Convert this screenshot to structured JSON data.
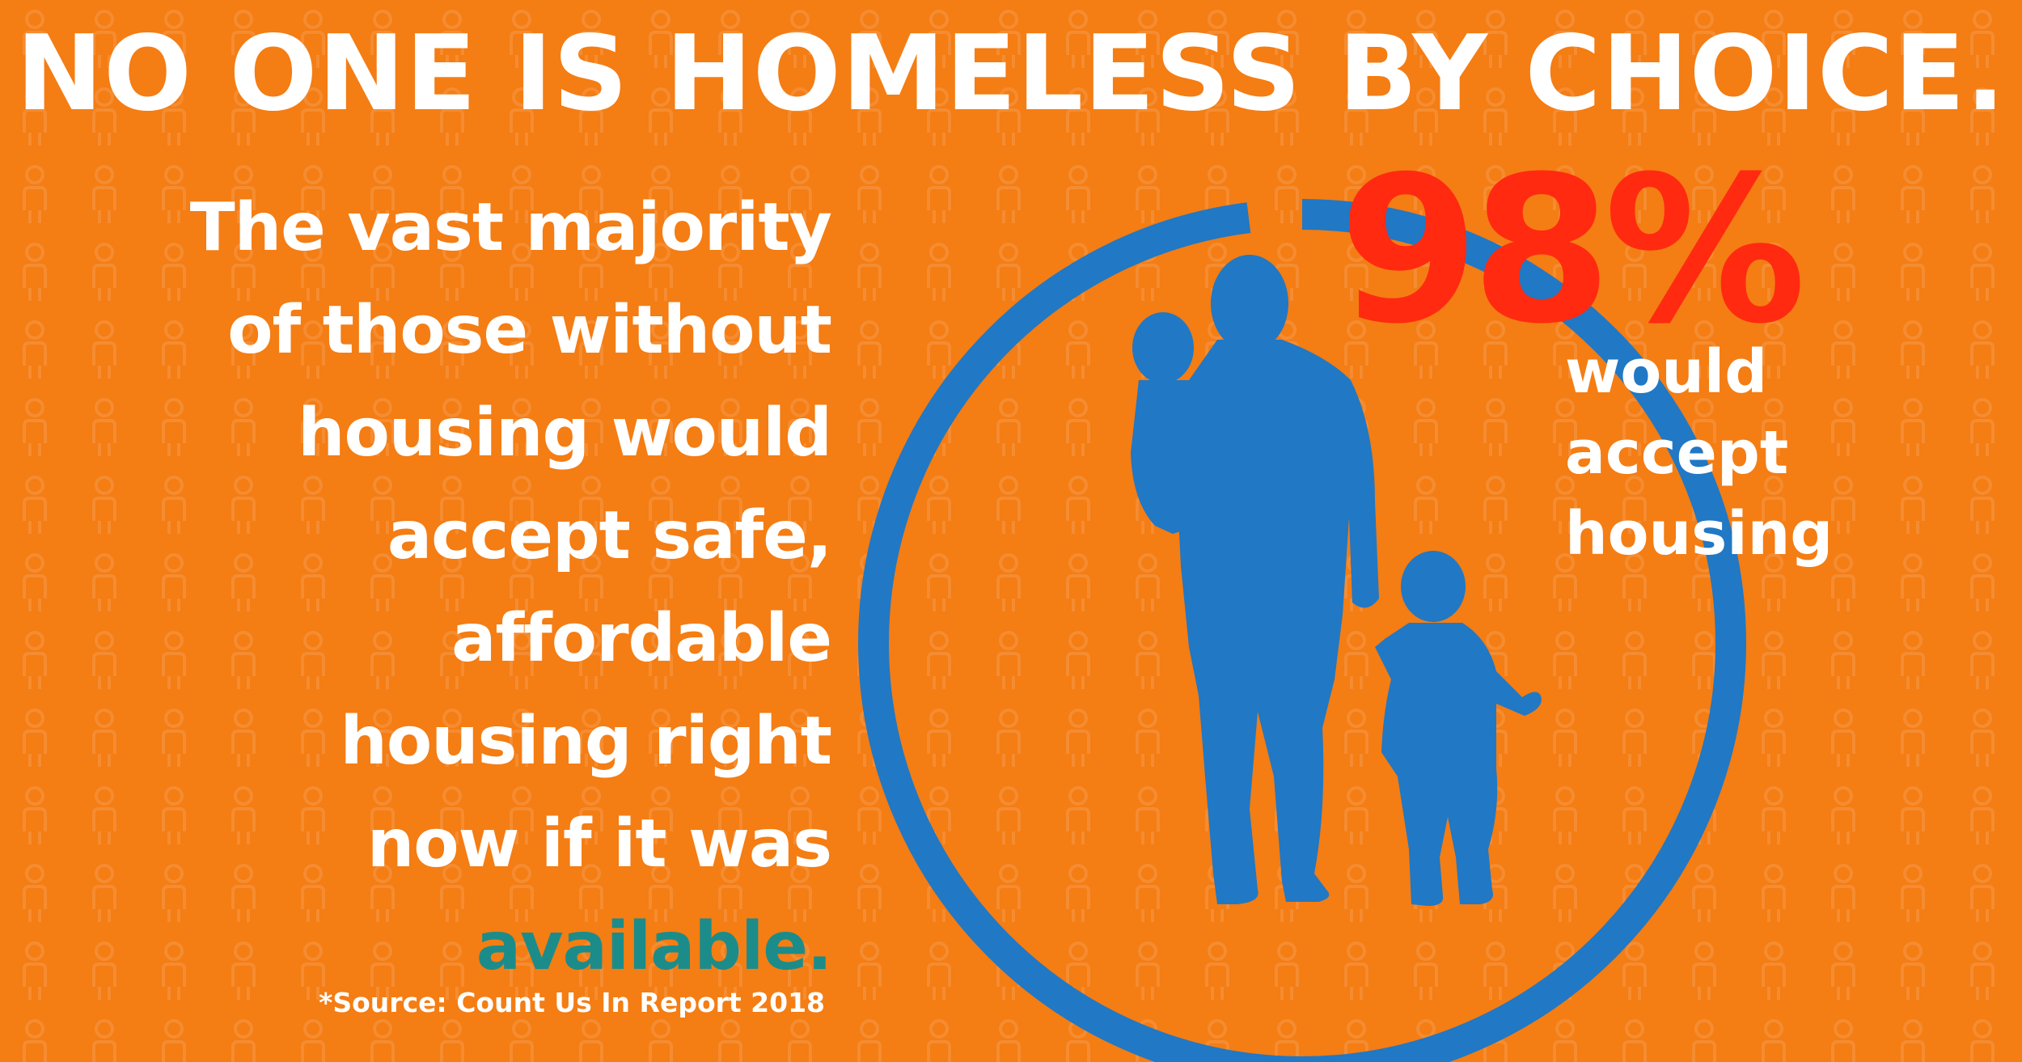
{
  "headline": "NO ONE IS HOMELESS BY CHOICE.",
  "body": {
    "lines": [
      "The vast majority",
      "of those without",
      "housing would",
      "accept safe,",
      "affordable",
      "housing right",
      "now if it was"
    ],
    "emphasis": "available."
  },
  "stat": {
    "value": "98%",
    "caption_lines": [
      "would",
      "accept",
      "housing"
    ],
    "ring_fraction": 0.98
  },
  "source": "*Source: Count Us In Report 2018",
  "colors": {
    "background": "#f47d14",
    "ring": "#2178c4",
    "silhouette": "#2178c4",
    "stat": "#ff2a10",
    "emphasis": "#1c8c8a"
  },
  "icons": {
    "background_pattern": "person-outline-icon",
    "silhouette": "adult-carrying-child-holding-hand-icon"
  }
}
